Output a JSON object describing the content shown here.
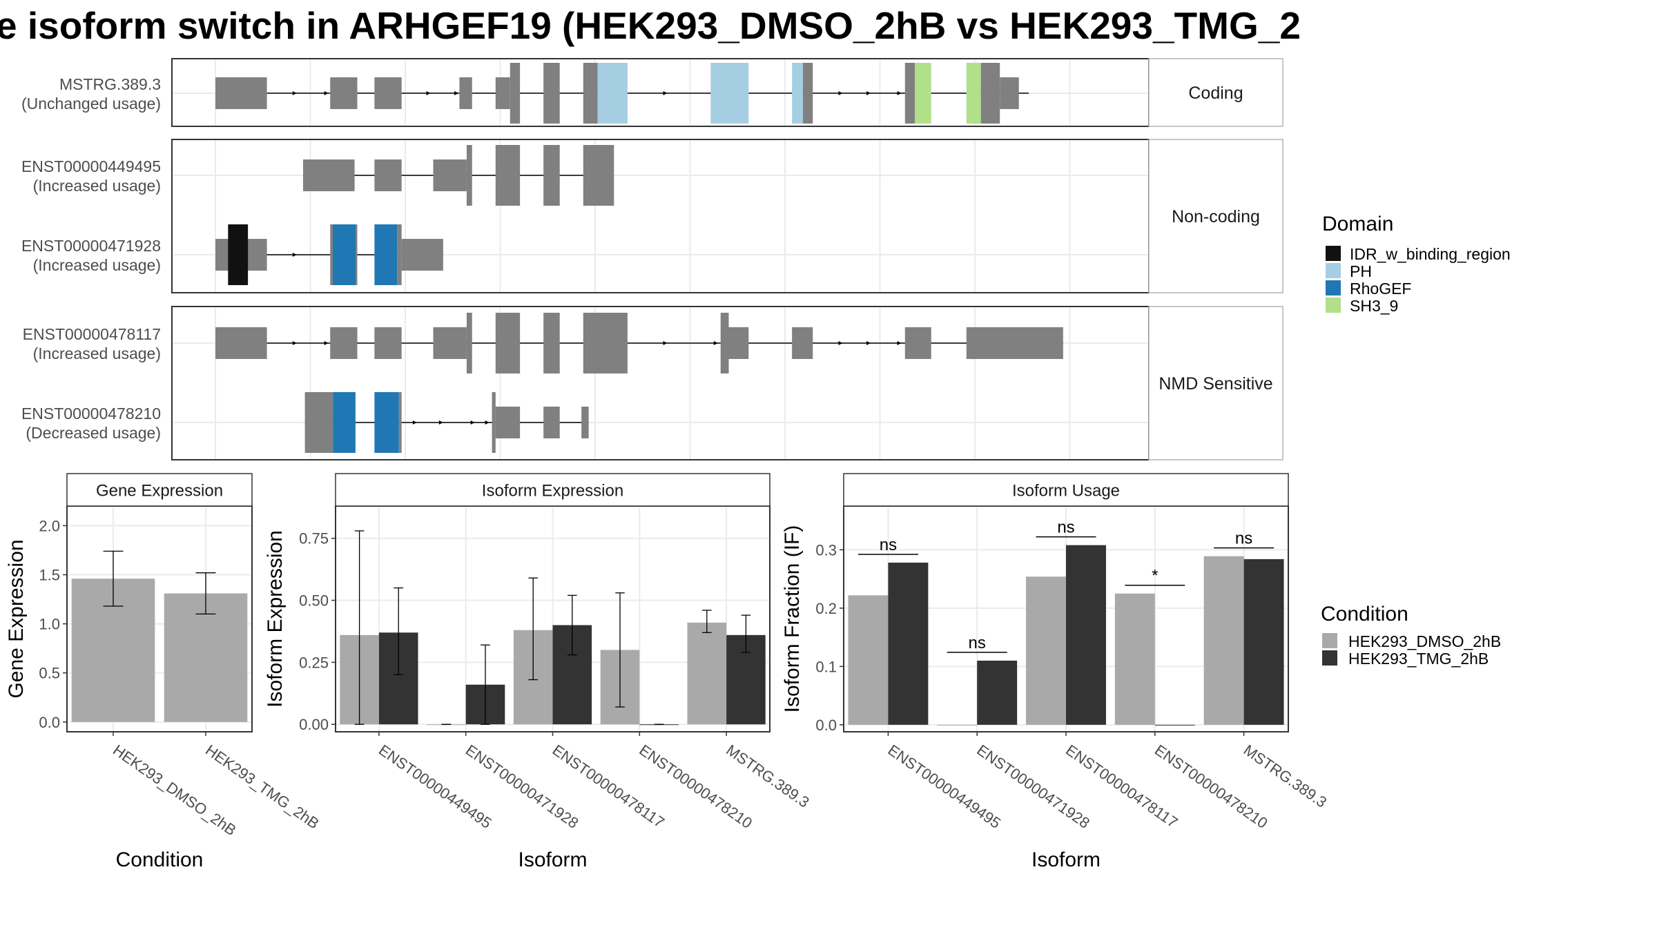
{
  "title": "e isoform switch in ARHGEF19 (HEK293_DMSO_2hB vs HEK293_TMG_2",
  "colors": {
    "IDR_w_binding_region": "#111111",
    "PH": "#a6cee3",
    "RhoGEF": "#1f78b4",
    "SH3_9": "#b2df8a",
    "exon": "#808080",
    "dmso": "#a9a9a9",
    "tmg": "#333333"
  },
  "structure": {
    "panels": [
      {
        "label": "Coding",
        "transcripts": [
          {
            "name": "MSTRG.389.3",
            "usage": "(Unchanged usage)",
            "intron": [
              0.0,
              0.9
            ],
            "exons": [
              [
                0.0,
                0.057,
                "s"
              ],
              [
                0.127,
                0.157,
                "s"
              ],
              [
                0.176,
                0.206,
                "s"
              ],
              [
                0.27,
                0.284,
                "s"
              ],
              [
                0.31,
                0.326,
                "s"
              ],
              [
                0.326,
                0.337,
                "l"
              ],
              [
                0.363,
                0.381,
                "l"
              ],
              [
                0.407,
                0.423,
                "l"
              ],
              [
                0.423,
                0.456,
                "l",
                "PH"
              ],
              [
                0.548,
                0.59,
                "l",
                "PH"
              ],
              [
                0.638,
                0.65,
                "l",
                "PH"
              ],
              [
                0.65,
                0.661,
                "l"
              ],
              [
                0.763,
                0.774,
                "l"
              ],
              [
                0.774,
                0.792,
                "l",
                "SH3_9"
              ],
              [
                0.831,
                0.847,
                "l",
                "SH3_9"
              ],
              [
                0.847,
                0.868,
                "l"
              ],
              [
                0.868,
                0.889,
                "s"
              ]
            ],
            "arrows": [
              0.09,
              0.125,
              0.238,
              0.269,
              0.5,
              0.694,
              0.725,
              0.759
            ]
          }
        ]
      },
      {
        "label": "Non-coding",
        "transcripts": [
          {
            "name": "ENST00000449495",
            "usage": "(Increased usage)",
            "intron": [
              0.097,
              0.438
            ],
            "exons": [
              [
                0.097,
                0.154,
                "s"
              ],
              [
                0.176,
                0.206,
                "s"
              ],
              [
                0.241,
                0.278,
                "s"
              ],
              [
                0.278,
                0.284,
                "l"
              ],
              [
                0.31,
                0.337,
                "l"
              ],
              [
                0.363,
                0.381,
                "l"
              ],
              [
                0.407,
                0.441,
                "l"
              ]
            ],
            "arrows": []
          },
          {
            "name": "ENST00000471928",
            "usage": "(Increased usage)",
            "intron": [
              0.0,
              0.252
            ],
            "exons": [
              [
                0.0,
                0.057,
                "s"
              ],
              [
                0.014,
                0.036,
                "l",
                "IDR_w_binding_region"
              ],
              [
                0.127,
                0.157,
                "l"
              ],
              [
                0.13,
                0.155,
                "l",
                "RhoGEF"
              ],
              [
                0.176,
                0.201,
                "l",
                "RhoGEF"
              ],
              [
                0.201,
                0.206,
                "l"
              ],
              [
                0.206,
                0.252,
                "s"
              ]
            ],
            "arrows": [
              0.09
            ]
          }
        ]
      },
      {
        "label": "NMD Sensitive",
        "transcripts": [
          {
            "name": "ENST00000478117",
            "usage": "(Increased usage)",
            "intron": [
              0.0,
              0.938
            ],
            "exons": [
              [
                0.0,
                0.057,
                "s"
              ],
              [
                0.127,
                0.157,
                "s"
              ],
              [
                0.176,
                0.206,
                "s"
              ],
              [
                0.241,
                0.278,
                "s"
              ],
              [
                0.278,
                0.284,
                "l"
              ],
              [
                0.31,
                0.337,
                "l"
              ],
              [
                0.363,
                0.381,
                "l"
              ],
              [
                0.407,
                0.456,
                "l"
              ],
              [
                0.559,
                0.568,
                "l"
              ],
              [
                0.568,
                0.59,
                "s"
              ],
              [
                0.638,
                0.661,
                "s"
              ],
              [
                0.763,
                0.792,
                "s"
              ],
              [
                0.831,
                0.938,
                "s"
              ]
            ],
            "arrows": [
              0.09,
              0.125,
              0.5,
              0.556,
              0.694,
              0.725,
              0.759
            ]
          },
          {
            "name": "ENST00000478210",
            "usage": "(Decreased usage)",
            "intron": [
              0.099,
              0.413
            ],
            "exons": [
              [
                0.099,
                0.13,
                "l"
              ],
              [
                0.13,
                0.155,
                "l",
                "RhoGEF"
              ],
              [
                0.176,
                0.203,
                "l",
                "RhoGEF"
              ],
              [
                0.203,
                0.206,
                "l"
              ],
              [
                0.306,
                0.31,
                "l"
              ],
              [
                0.31,
                0.337,
                "s"
              ],
              [
                0.363,
                0.381,
                "s"
              ],
              [
                0.405,
                0.413,
                "s"
              ]
            ],
            "arrows": [
              0.223,
              0.252,
              0.287,
              0.303
            ]
          }
        ]
      }
    ]
  },
  "legend_domain": {
    "title": "Domain",
    "items": [
      "IDR_w_binding_region",
      "PH",
      "RhoGEF",
      "SH3_9"
    ]
  },
  "legend_condition": {
    "title": "Condition",
    "items": [
      "HEK293_DMSO_2hB",
      "HEK293_TMG_2hB"
    ]
  },
  "chart_data": [
    {
      "type": "bar",
      "title": "Gene Expression",
      "xlabel": "Condition",
      "ylabel": "Gene Expression",
      "ylim": [
        -0.1,
        2.2
      ],
      "yticks": [
        "0.0",
        "0.5",
        "1.0",
        "1.5",
        "2.0"
      ],
      "categories": [
        "HEK293_DMSO_2hB",
        "HEK293_TMG_2hB"
      ],
      "series": [
        {
          "values": [
            1.46,
            1.31
          ],
          "err_low": [
            1.18,
            1.1
          ],
          "err_high": [
            1.74,
            1.52
          ]
        }
      ]
    },
    {
      "type": "bar",
      "title": "Isoform Expression",
      "xlabel": "Isoform",
      "ylabel": "Isoform Expression",
      "ylim": [
        -0.03,
        0.88
      ],
      "yticks": [
        "0.00",
        "0.25",
        "0.50",
        "0.75"
      ],
      "categories": [
        "ENST00000449495",
        "ENST00000471928",
        "ENST00000478117",
        "ENST00000478210",
        "MSTRG.389.3"
      ],
      "series": [
        {
          "name": "HEK293_DMSO_2hB",
          "values": [
            0.36,
            0,
            0.38,
            0.3,
            0.41
          ],
          "err_low": [
            0.0,
            0,
            0.18,
            0.07,
            0.37
          ],
          "err_high": [
            0.78,
            0,
            0.59,
            0.53,
            0.46
          ]
        },
        {
          "name": "HEK293_TMG_2hB",
          "values": [
            0.37,
            0.16,
            0.4,
            0,
            0.36
          ],
          "err_low": [
            0.2,
            0.0,
            0.28,
            0,
            0.29
          ],
          "err_high": [
            0.55,
            0.32,
            0.52,
            0,
            0.44
          ]
        }
      ]
    },
    {
      "type": "bar",
      "title": "Isoform Usage",
      "xlabel": "Isoform",
      "ylabel": "Isoform Fraction (IF)",
      "ylim": [
        -0.012,
        0.375
      ],
      "yticks": [
        "0.0",
        "0.1",
        "0.2",
        "0.3"
      ],
      "categories": [
        "ENST00000449495",
        "ENST00000471928",
        "ENST00000478117",
        "ENST00000478210",
        "MSTRG.389.3"
      ],
      "series": [
        {
          "name": "HEK293_DMSO_2hB",
          "values": [
            0.222,
            0,
            0.254,
            0.225,
            0.289
          ]
        },
        {
          "name": "HEK293_TMG_2hB",
          "values": [
            0.278,
            0.11,
            0.308,
            0,
            0.284
          ]
        }
      ],
      "significance": [
        "ns",
        "ns",
        "ns",
        "*",
        "ns"
      ]
    }
  ]
}
